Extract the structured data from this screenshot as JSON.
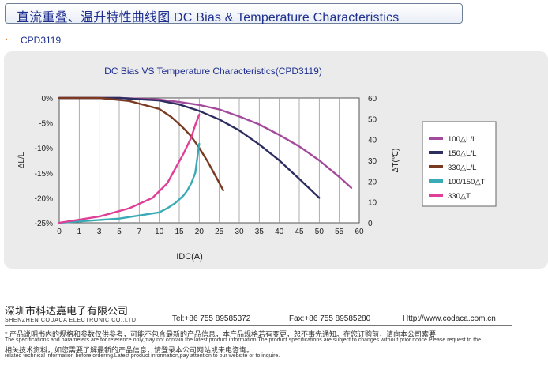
{
  "header": {
    "title": "直流重叠、温升特性曲线图 DC Bias & Temperature Characteristics"
  },
  "product": {
    "code": "CPD3119"
  },
  "chart_data": {
    "type": "line",
    "title": "DC Bias VS Temperature Characteristics(CPD3119)",
    "xlabel": "IDC(A)",
    "ylabel_left": "ΔL/L",
    "ylabel_right": "ΔT(℃)",
    "x_ticks": [
      0,
      1,
      3,
      5,
      7,
      10,
      15,
      20,
      25,
      30,
      35,
      40,
      45,
      50,
      55,
      60
    ],
    "y_left_ticks": [
      "0%",
      "-5%",
      "-10%",
      "-15%",
      "-20%",
      "-25%"
    ],
    "y_left_range": [
      -25,
      0
    ],
    "y_right_ticks": [
      60,
      50,
      40,
      30,
      20,
      10,
      0
    ],
    "y_right_range": [
      0,
      60
    ],
    "series": [
      {
        "name": "100△L/L",
        "axis": "left",
        "color": "#a34a9c",
        "x": [
          0,
          5,
          10,
          15,
          20,
          25,
          30,
          35,
          40,
          45,
          50,
          55,
          58
        ],
        "y": [
          0,
          0,
          -0.3,
          -0.8,
          -1.4,
          -2.3,
          -3.7,
          -5.3,
          -7.4,
          -9.7,
          -12.5,
          -15.8,
          -18
        ]
      },
      {
        "name": "150△L/L",
        "axis": "left",
        "color": "#2d2d60",
        "x": [
          0,
          5,
          10,
          15,
          20,
          25,
          30,
          35,
          40,
          45,
          50
        ],
        "y": [
          0,
          0,
          -0.5,
          -1.3,
          -2.6,
          -4.3,
          -6.5,
          -9.3,
          -12.5,
          -16.2,
          -20
        ]
      },
      {
        "name": "330△L/L",
        "axis": "left",
        "color": "#7a3a22",
        "x": [
          0,
          3,
          6,
          10,
          13,
          16,
          18,
          20,
          22,
          24,
          26
        ],
        "y": [
          0,
          0,
          -0.6,
          -2.2,
          -3.8,
          -6,
          -7.7,
          -10,
          -12.6,
          -15.5,
          -18.5
        ]
      },
      {
        "name": "100/150△T",
        "axis": "right",
        "color": "#3aabb6",
        "x": [
          0,
          5,
          10,
          12,
          14,
          16,
          17,
          18,
          19,
          20
        ],
        "y": [
          0,
          2,
          5,
          7,
          9.5,
          13,
          15.5,
          19,
          24,
          38
        ]
      },
      {
        "name": "330△T",
        "axis": "right",
        "color": "#df3f97",
        "x": [
          0,
          3,
          6,
          9,
          12,
          14,
          16,
          18,
          19,
          20
        ],
        "y": [
          0,
          3,
          7,
          12,
          19,
          26,
          33,
          41,
          47,
          52
        ]
      }
    ]
  },
  "footer": {
    "company_cn": "深圳市科达嘉电子有限公司",
    "company_en": "SHENZHEN CODACA ELECTRONIC CO.,LTD",
    "tel": "Tel:+86 755 89585372",
    "fax": "Fax:+86 755 89585280",
    "web": "Http://www.codaca.com.cn",
    "note_line1": "* 产品说明书内的规格和参数仅供参考，可能不包含最新的产品信息，本产品规格若有变更，恕不事先通知。在您订购前，请向本公司索要",
    "note_line2": "The specifications and parameters are for reference only,may not contain the latest product information.The product specifications are subject to changes without prior notice.Please request to the",
    "note_line3": "相关技术资料，如您需要了解最新的产品信息，请登录本公司网站或来电咨询。",
    "note_line4": "related technical information before ordering.Latest product information,pay attention to our website or to inquire."
  }
}
